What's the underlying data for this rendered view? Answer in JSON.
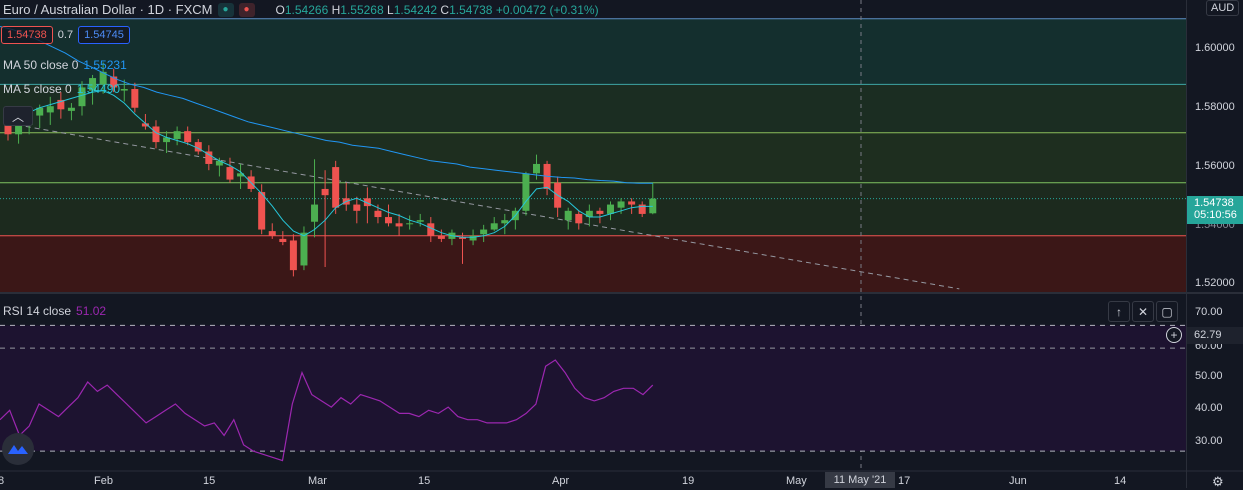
{
  "symbol": {
    "title": "Euro / Australian Dollar · 1D · FXCM",
    "ohlc": {
      "o_label": "O",
      "o": "1.54266",
      "h_label": "H",
      "h": "1.55268",
      "l_label": "L",
      "l": "1.54242",
      "c_label": "C",
      "c": "1.54738",
      "change": "+0.00472 (+0.31%)"
    }
  },
  "trade": {
    "sell": "1.54738",
    "spread": "0.7",
    "buy": "1.54745"
  },
  "indicators": {
    "ma50": {
      "label": "MA 50 close 0",
      "value": "1.55231",
      "color": "#2196f3"
    },
    "ma5": {
      "label": "MA 5 close 0",
      "value": "1.54490",
      "color": "#26c6da"
    },
    "rsi": {
      "label": "RSI 14 close",
      "value": "51.02",
      "color": "#9c27b0"
    }
  },
  "currency": "AUD",
  "price_axis": [
    "1.60000",
    "1.58000",
    "1.56000",
    "1.52000"
  ],
  "last_price": {
    "price": "1.54738",
    "countdown": "05:10:56"
  },
  "rsi_axis": [
    "70.00",
    "60.00",
    "50.00",
    "40.00",
    "30.00"
  ],
  "rsi_cursor_value": "62.79",
  "time_axis": [
    "Feb",
    "15",
    "Mar",
    "15",
    "Apr",
    "19",
    "May",
    "17",
    "Jun",
    "14"
  ],
  "cursor_date": "11 May '21",
  "colors": {
    "up": "#4caf50",
    "down": "#ef5350",
    "background": "#131722",
    "grid": "#1e222d"
  },
  "chart_data": {
    "type": "candlestick",
    "ylim": [
      1.5175,
      1.611
    ],
    "candles": [
      [
        1.5712,
        1.575,
        1.566,
        1.568
      ],
      [
        1.568,
        1.5725,
        1.565,
        1.571
      ],
      [
        1.571,
        1.576,
        1.568,
        1.574
      ],
      [
        1.574,
        1.5775,
        1.57,
        1.5765
      ],
      [
        1.575,
        1.58,
        1.571,
        1.577
      ],
      [
        1.579,
        1.5815,
        1.573,
        1.576
      ],
      [
        1.5755,
        1.578,
        1.5725,
        1.5765
      ],
      [
        1.577,
        1.585,
        1.574,
        1.583
      ],
      [
        1.582,
        1.587,
        1.5775,
        1.586
      ],
      [
        1.584,
        1.591,
        1.581,
        1.588
      ],
      [
        1.5865,
        1.589,
        1.5815,
        1.583
      ],
      [
        1.582,
        1.5855,
        1.5785,
        1.5825
      ],
      [
        1.5825,
        1.5845,
        1.575,
        1.5765
      ],
      [
        1.5715,
        1.5745,
        1.5695,
        1.5705
      ],
      [
        1.5705,
        1.5725,
        1.5635,
        1.5655
      ],
      [
        1.5655,
        1.569,
        1.562,
        1.567
      ],
      [
        1.5665,
        1.5705,
        1.5645,
        1.569
      ],
      [
        1.569,
        1.5705,
        1.5645,
        1.5655
      ],
      [
        1.5655,
        1.5665,
        1.5615,
        1.5625
      ],
      [
        1.5625,
        1.5645,
        1.5565,
        1.5585
      ],
      [
        1.558,
        1.5605,
        1.5545,
        1.5595
      ],
      [
        1.5575,
        1.5605,
        1.5525,
        1.5535
      ],
      [
        1.5545,
        1.5585,
        1.5505,
        1.5555
      ],
      [
        1.5545,
        1.5565,
        1.5495,
        1.5505
      ],
      [
        1.5495,
        1.552,
        1.536,
        1.5375
      ],
      [
        1.537,
        1.5395,
        1.5345,
        1.5355
      ],
      [
        1.5345,
        1.537,
        1.5325,
        1.5335
      ],
      [
        1.534,
        1.536,
        1.5225,
        1.5245
      ],
      [
        1.526,
        1.5385,
        1.5245,
        1.5365
      ],
      [
        1.54,
        1.56,
        1.535,
        1.5455
      ],
      [
        1.5505,
        1.5565,
        1.5255,
        1.5485
      ],
      [
        1.5575,
        1.5595,
        1.5425,
        1.5445
      ],
      [
        1.5475,
        1.5525,
        1.5435,
        1.5455
      ],
      [
        1.5455,
        1.548,
        1.5395,
        1.5435
      ],
      [
        1.5475,
        1.551,
        1.5395,
        1.545
      ],
      [
        1.5435,
        1.5455,
        1.5395,
        1.5415
      ],
      [
        1.5415,
        1.5455,
        1.5385,
        1.5395
      ],
      [
        1.5395,
        1.5425,
        1.5355,
        1.5385
      ],
      [
        1.5395,
        1.542,
        1.5375,
        1.5395
      ],
      [
        1.54,
        1.5425,
        1.5385,
        1.5405
      ],
      [
        1.5395,
        1.5415,
        1.5335,
        1.5355
      ],
      [
        1.5355,
        1.5375,
        1.5335,
        1.5345
      ],
      [
        1.5345,
        1.5375,
        1.5325,
        1.5365
      ],
      [
        1.535,
        1.5365,
        1.5265,
        1.5345
      ],
      [
        1.534,
        1.5375,
        1.5325,
        1.5355
      ],
      [
        1.536,
        1.539,
        1.5335,
        1.5375
      ],
      [
        1.5375,
        1.5415,
        1.537,
        1.5395
      ],
      [
        1.5395,
        1.5425,
        1.536,
        1.5405
      ],
      [
        1.5405,
        1.5445,
        1.5375,
        1.5435
      ],
      [
        1.5435,
        1.556,
        1.542,
        1.5555
      ],
      [
        1.5555,
        1.5615,
        1.5535,
        1.5585
      ],
      [
        1.5585,
        1.5595,
        1.5485,
        1.5505
      ],
      [
        1.5525,
        1.5545,
        1.5415,
        1.5445
      ],
      [
        1.5405,
        1.5445,
        1.5375,
        1.5435
      ],
      [
        1.5425,
        1.5435,
        1.5375,
        1.5395
      ],
      [
        1.5415,
        1.5455,
        1.5385,
        1.5435
      ],
      [
        1.5435,
        1.5445,
        1.5395,
        1.5425
      ],
      [
        1.5425,
        1.5465,
        1.5405,
        1.5455
      ],
      [
        1.5445,
        1.5475,
        1.5425,
        1.5465
      ],
      [
        1.5465,
        1.5475,
        1.5425,
        1.5455
      ],
      [
        1.5455,
        1.5465,
        1.5415,
        1.5425
      ],
      [
        1.5427,
        1.5527,
        1.5424,
        1.5474
      ]
    ],
    "ma50_series": [
      1.6025,
      1.6015,
      1.6,
      1.598,
      1.596,
      1.594,
      1.5915,
      1.5895,
      1.5875,
      1.5855,
      1.584,
      1.583,
      1.5815,
      1.5805,
      1.5795,
      1.578,
      1.5765,
      1.575,
      1.5735,
      1.572,
      1.571,
      1.57,
      1.569,
      1.568,
      1.567,
      1.566,
      1.5655,
      1.5645,
      1.564,
      1.5635,
      1.5625,
      1.5615,
      1.5605,
      1.5595,
      1.559,
      1.5585,
      1.5575,
      1.557,
      1.5565,
      1.556,
      1.5555,
      1.555,
      1.5545,
      1.5542,
      1.554,
      1.5535,
      1.5532,
      1.553,
      1.5525,
      1.5523,
      1.5523
    ],
    "ma5_series": [
      1.571,
      1.573,
      1.575,
      1.5765,
      1.5775,
      1.5785,
      1.5795,
      1.5805,
      1.5815,
      1.582,
      1.5805,
      1.578,
      1.5745,
      1.5715,
      1.5685,
      1.567,
      1.566,
      1.565,
      1.5635,
      1.5615,
      1.5595,
      1.558,
      1.556,
      1.5525,
      1.549,
      1.545,
      1.5405,
      1.537,
      1.5355,
      1.5375,
      1.5405,
      1.5445,
      1.5465,
      1.5475,
      1.546,
      1.5445,
      1.543,
      1.542,
      1.5405,
      1.5395,
      1.538,
      1.5365,
      1.5355,
      1.535,
      1.535,
      1.5355,
      1.5365,
      1.5385,
      1.542,
      1.5465,
      1.5505,
      1.551,
      1.5485,
      1.5465,
      1.5435,
      1.5415,
      1.5415,
      1.5425,
      1.5435,
      1.5445,
      1.5449,
      1.5449
    ],
    "trendline": {
      "start": [
        0,
        1.5715
      ],
      "end": [
        90,
        1.5185
      ]
    },
    "horizontal_levels": [
      1.605,
      1.584,
      1.5685,
      1.5525,
      1.5355
    ],
    "rsi_series": [
      40,
      43,
      35,
      38,
      45,
      43,
      41,
      44,
      47,
      52,
      49,
      51,
      48,
      45,
      42,
      39,
      41,
      43,
      45,
      42,
      40,
      38,
      39,
      35,
      40,
      32,
      30,
      29,
      28,
      27,
      45,
      55,
      48,
      46,
      44,
      47,
      45,
      48,
      47,
      46,
      44,
      42,
      42,
      41,
      43,
      42,
      44,
      41,
      40,
      40,
      39,
      39,
      39,
      40,
      42,
      45,
      57,
      59,
      55,
      50,
      47,
      46,
      47,
      49,
      50,
      50,
      48,
      51
    ],
    "rsi_ylim": [
      24,
      80
    ],
    "rsi_levels": [
      70,
      30
    ]
  }
}
